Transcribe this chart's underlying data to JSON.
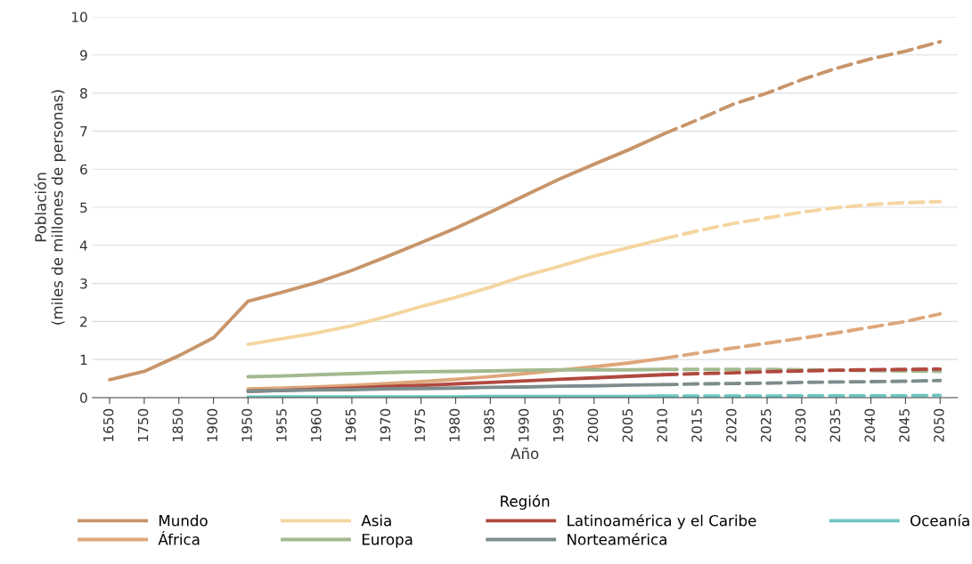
{
  "chart_data": {
    "type": "line",
    "xlabel": "Año",
    "ylabel": "Población\n(miles de millones de personas)",
    "legend_title": "Región",
    "legend": "bottom",
    "grid": "y",
    "line_style": "solid",
    "marker": "none",
    "categories": [
      "1650",
      "1750",
      "1850",
      "1900",
      "1950",
      "1955",
      "1960",
      "1965",
      "1970",
      "1975",
      "1980",
      "1985",
      "1990",
      "1995",
      "2000",
      "2005",
      "2010",
      "2015",
      "2020",
      "2025",
      "2030",
      "2035",
      "2040",
      "2045",
      "2050"
    ],
    "ylim": [
      0,
      10
    ],
    "yticks": [
      0,
      1,
      2,
      3,
      4,
      5,
      6,
      7,
      8,
      9,
      10
    ],
    "series": [
      {
        "name": "Mundo",
        "color": "#c8956a",
        "values": [
          0.47,
          0.69,
          1.1,
          1.57,
          2.53,
          2.77,
          3.03,
          3.34,
          3.7,
          4.07,
          4.45,
          4.87,
          5.31,
          5.74,
          6.13,
          6.51,
          6.92,
          null,
          null,
          null,
          null,
          null,
          null,
          null,
          null
        ]
      },
      {
        "name": "África",
        "color": "#dea77b",
        "values": [
          null,
          null,
          null,
          null,
          0.23,
          0.25,
          0.28,
          0.32,
          0.37,
          0.42,
          0.48,
          0.55,
          0.63,
          0.72,
          0.81,
          0.91,
          1.03,
          null,
          null,
          null,
          null,
          null,
          null,
          null,
          null
        ]
      },
      {
        "name": "Asia",
        "color": "#f5d5a0",
        "values": [
          null,
          null,
          null,
          null,
          1.4,
          1.55,
          1.7,
          1.89,
          2.13,
          2.39,
          2.63,
          2.9,
          3.2,
          3.45,
          3.72,
          3.94,
          4.17,
          null,
          null,
          null,
          null,
          null,
          null,
          null,
          null
        ]
      },
      {
        "name": "Europa",
        "color": "#a3b98f",
        "values": [
          null,
          null,
          null,
          null,
          0.55,
          0.57,
          0.6,
          0.63,
          0.66,
          0.68,
          0.69,
          0.7,
          0.72,
          0.73,
          0.73,
          0.73,
          0.74,
          null,
          null,
          null,
          null,
          null,
          null,
          null,
          null
        ]
      },
      {
        "name": "Latinoamérica y el Caribe",
        "color": "#b0493f",
        "values": [
          null,
          null,
          null,
          null,
          0.17,
          0.19,
          0.22,
          0.25,
          0.29,
          0.32,
          0.36,
          0.4,
          0.44,
          0.48,
          0.52,
          0.56,
          0.6,
          null,
          null,
          null,
          null,
          null,
          null,
          null,
          null
        ]
      },
      {
        "name": "Norteamérica",
        "color": "#7d8c8c",
        "values": [
          null,
          null,
          null,
          null,
          0.17,
          0.19,
          0.2,
          0.21,
          0.23,
          0.24,
          0.25,
          0.27,
          0.28,
          0.3,
          0.31,
          0.33,
          0.34,
          null,
          null,
          null,
          null,
          null,
          null,
          null,
          null
        ]
      },
      {
        "name": "Oceanía",
        "color": "#6cc6c0",
        "values": [
          null,
          null,
          null,
          null,
          0.01,
          0.02,
          0.02,
          0.02,
          0.02,
          0.02,
          0.02,
          0.03,
          0.03,
          0.03,
          0.03,
          0.03,
          0.04,
          null,
          null,
          null,
          null,
          null,
          null,
          null,
          null
        ]
      },
      {
        "color": "#c8956a",
        "line_style": "dashed",
        "values": [
          null,
          null,
          null,
          null,
          null,
          null,
          null,
          null,
          null,
          null,
          null,
          null,
          null,
          null,
          null,
          null,
          6.92,
          7.3,
          7.7,
          8.0,
          8.35,
          8.65,
          8.9,
          9.1,
          9.35
        ]
      },
      {
        "color": "#dea77b",
        "line_style": "dashed",
        "values": [
          null,
          null,
          null,
          null,
          null,
          null,
          null,
          null,
          null,
          null,
          null,
          null,
          null,
          null,
          null,
          null,
          1.03,
          1.17,
          1.3,
          1.43,
          1.56,
          1.7,
          1.85,
          2.0,
          2.2
        ]
      },
      {
        "color": "#f5d5a0",
        "line_style": "dashed",
        "values": [
          null,
          null,
          null,
          null,
          null,
          null,
          null,
          null,
          null,
          null,
          null,
          null,
          null,
          null,
          null,
          null,
          4.17,
          4.38,
          4.57,
          4.72,
          4.87,
          4.99,
          5.07,
          5.12,
          5.15
        ]
      },
      {
        "color": "#a3b98f",
        "line_style": "dashed",
        "values": [
          null,
          null,
          null,
          null,
          null,
          null,
          null,
          null,
          null,
          null,
          null,
          null,
          null,
          null,
          null,
          null,
          0.74,
          0.74,
          0.74,
          0.74,
          0.73,
          0.72,
          0.71,
          0.7,
          0.69
        ]
      },
      {
        "color": "#b0493f",
        "line_style": "dashed",
        "values": [
          null,
          null,
          null,
          null,
          null,
          null,
          null,
          null,
          null,
          null,
          null,
          null,
          null,
          null,
          null,
          null,
          0.6,
          0.63,
          0.65,
          0.68,
          0.7,
          0.72,
          0.73,
          0.74,
          0.75
        ]
      },
      {
        "color": "#7d8c8c",
        "line_style": "dashed",
        "values": [
          null,
          null,
          null,
          null,
          null,
          null,
          null,
          null,
          null,
          null,
          null,
          null,
          null,
          null,
          null,
          null,
          0.34,
          0.36,
          0.37,
          0.38,
          0.4,
          0.41,
          0.42,
          0.43,
          0.45
        ]
      },
      {
        "color": "#6cc6c0",
        "line_style": "dashed",
        "values": [
          null,
          null,
          null,
          null,
          null,
          null,
          null,
          null,
          null,
          null,
          null,
          null,
          null,
          null,
          null,
          null,
          0.04,
          0.04,
          0.04,
          0.04,
          0.05,
          0.05,
          0.05,
          0.05,
          0.06
        ]
      }
    ]
  }
}
